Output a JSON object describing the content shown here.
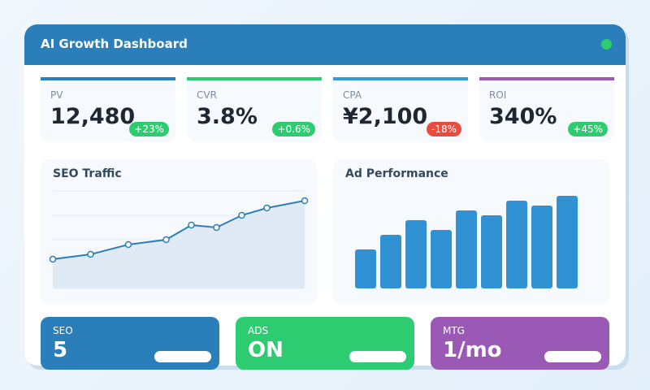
{
  "header": {
    "title": "AI Growth Dashboard",
    "status_color": "#2ecc71"
  },
  "kpis": [
    {
      "label": "PV",
      "value": "12,480",
      "change": "+23%",
      "accent": "#2a7fba",
      "badge_color": "#2ecc71"
    },
    {
      "label": "CVR",
      "value": "3.8%",
      "change": "+0.6%",
      "accent": "#2ecc71",
      "badge_color": "#2ecc71"
    },
    {
      "label": "CPA",
      "value": "¥2,100",
      "change": "-18%",
      "accent": "#3498db",
      "badge_color": "#e74c3c"
    },
    {
      "label": "ROI",
      "value": "340%",
      "change": "+45%",
      "accent": "#9b59b6",
      "badge_color": "#2ecc71"
    }
  ],
  "chart_data": [
    {
      "type": "area",
      "title": "SEO Traffic",
      "x": [
        0,
        1.5,
        3,
        4.5,
        5.5,
        6.5,
        7.5,
        8.5,
        10
      ],
      "values": [
        1.2,
        1.4,
        1.8,
        2.0,
        2.6,
        2.5,
        3.0,
        3.3,
        3.6
      ],
      "ylim": [
        0,
        4
      ],
      "grid": true,
      "color": "#2a7fba"
    },
    {
      "type": "bar",
      "title": "Ad Performance",
      "values": [
        8,
        11,
        14,
        12,
        16,
        15,
        18,
        17,
        19
      ],
      "ylim": [
        0,
        20
      ],
      "grid": false,
      "color": "#3192d3"
    }
  ],
  "tiles": [
    {
      "label": "SEO",
      "value": "5",
      "color": "#2a7fba"
    },
    {
      "label": "ADS",
      "value": "ON",
      "color": "#2ecc71"
    },
    {
      "label": "MTG",
      "value": "1/mo",
      "color": "#9b59b6"
    }
  ]
}
